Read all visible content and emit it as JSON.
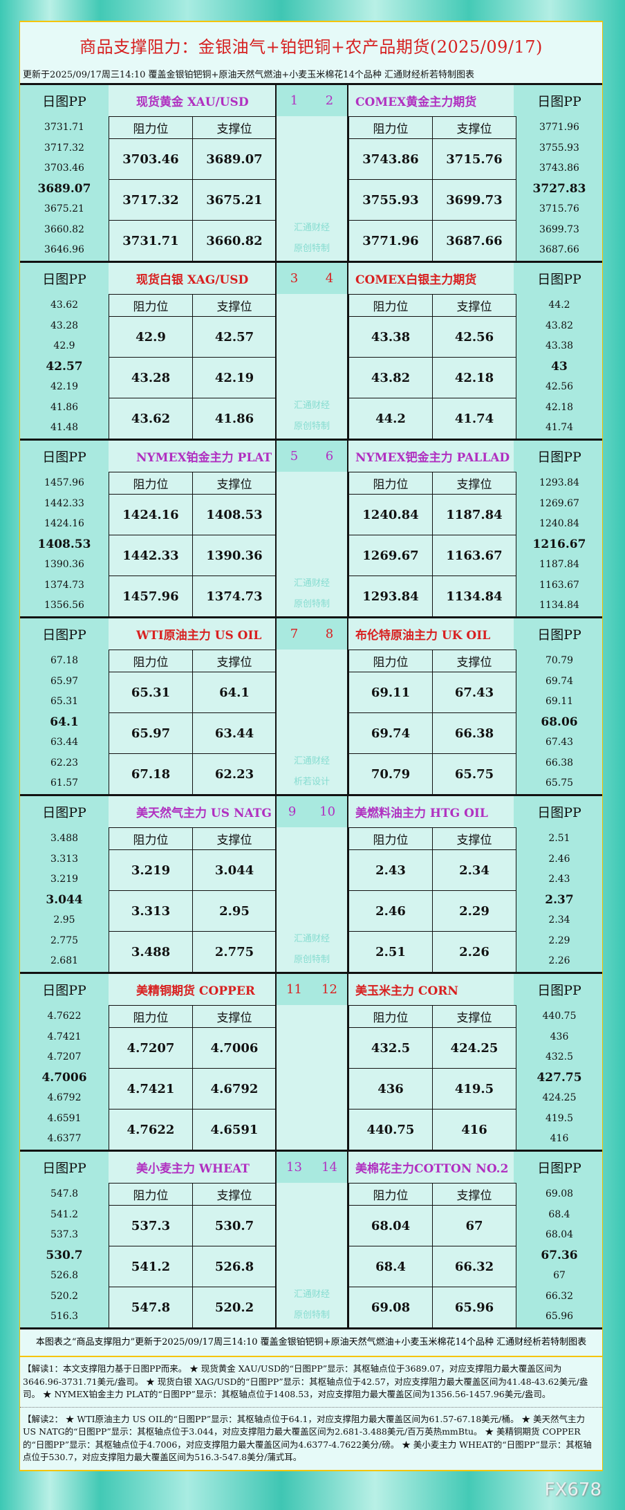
{
  "title": "商品支撑阻力：金银油气+铂钯铜+农产品期货(2025/09/17)",
  "subtitle": "更新于2025/09/17周三14:10  覆盖金银铂钯铜+原油天然气燃油+小麦玉米棉花14个品种  汇通财经析若特制图表",
  "pp_label": "日图PP",
  "res_label": "阻力位",
  "sup_label": "支撑位",
  "colors": {
    "purple": "#b030c0",
    "red": "#d82020"
  },
  "sections": [
    {
      "left": {
        "name": "现货黄金 XAU/USD",
        "color": "purple",
        "num": "1",
        "pp": [
          "3731.71",
          "3717.32",
          "3703.46",
          "3689.07",
          "3675.21",
          "3660.82",
          "3646.96"
        ],
        "rows": [
          [
            "3703.46",
            "3689.07"
          ],
          [
            "3717.32",
            "3675.21"
          ],
          [
            "3731.71",
            "3660.82"
          ]
        ]
      },
      "right": {
        "name": "COMEX黄金主力期货",
        "color": "purple",
        "num": "2",
        "pp": [
          "3771.96",
          "3755.93",
          "3743.86",
          "3727.83",
          "3715.76",
          "3699.73",
          "3687.66"
        ],
        "rows": [
          [
            "3743.86",
            "3715.76"
          ],
          [
            "3755.93",
            "3699.73"
          ],
          [
            "3771.96",
            "3687.66"
          ]
        ]
      },
      "watermark": [
        "汇通财经",
        "原创特制"
      ]
    },
    {
      "left": {
        "name": "现货白银 XAG/USD",
        "color": "red",
        "num": "3",
        "pp": [
          "43.62",
          "43.28",
          "42.9",
          "42.57",
          "42.19",
          "41.86",
          "41.48"
        ],
        "rows": [
          [
            "42.9",
            "42.57"
          ],
          [
            "43.28",
            "42.19"
          ],
          [
            "43.62",
            "41.86"
          ]
        ]
      },
      "right": {
        "name": "COMEX白银主力期货",
        "color": "red",
        "num": "4",
        "pp": [
          "44.2",
          "43.82",
          "43.38",
          "43",
          "42.56",
          "42.18",
          "41.74"
        ],
        "rows": [
          [
            "43.38",
            "42.56"
          ],
          [
            "43.82",
            "42.18"
          ],
          [
            "44.2",
            "41.74"
          ]
        ]
      },
      "watermark": [
        "汇通财经",
        "原创特制"
      ]
    },
    {
      "left": {
        "name": "NYMEX铂金主力 PLAT",
        "color": "purple",
        "num": "5",
        "pp": [
          "1457.96",
          "1442.33",
          "1424.16",
          "1408.53",
          "1390.36",
          "1374.73",
          "1356.56"
        ],
        "rows": [
          [
            "1424.16",
            "1408.53"
          ],
          [
            "1442.33",
            "1390.36"
          ],
          [
            "1457.96",
            "1374.73"
          ]
        ]
      },
      "right": {
        "name": "NYMEX钯金主力 PALLAD",
        "color": "purple",
        "num": "6",
        "pp": [
          "1293.84",
          "1269.67",
          "1240.84",
          "1216.67",
          "1187.84",
          "1163.67",
          "1134.84"
        ],
        "rows": [
          [
            "1240.84",
            "1187.84"
          ],
          [
            "1269.67",
            "1163.67"
          ],
          [
            "1293.84",
            "1134.84"
          ]
        ]
      },
      "watermark": [
        "汇通财经",
        "原创特制"
      ]
    },
    {
      "left": {
        "name": "WTI原油主力 US OIL",
        "color": "red",
        "num": "7",
        "pp": [
          "67.18",
          "65.97",
          "65.31",
          "64.1",
          "63.44",
          "62.23",
          "61.57"
        ],
        "rows": [
          [
            "65.31",
            "64.1"
          ],
          [
            "65.97",
            "63.44"
          ],
          [
            "67.18",
            "62.23"
          ]
        ]
      },
      "right": {
        "name": "布伦特原油主力 UK OIL",
        "color": "red",
        "num": "8",
        "pp": [
          "70.79",
          "69.74",
          "69.11",
          "68.06",
          "67.43",
          "66.38",
          "65.75"
        ],
        "rows": [
          [
            "69.11",
            "67.43"
          ],
          [
            "69.74",
            "66.38"
          ],
          [
            "70.79",
            "65.75"
          ]
        ]
      },
      "watermark": [
        "汇通财经",
        "析若设计"
      ]
    },
    {
      "left": {
        "name": "美天然气主力 US NATG",
        "color": "purple",
        "num": "9",
        "pp": [
          "3.488",
          "3.313",
          "3.219",
          "3.044",
          "2.95",
          "2.775",
          "2.681"
        ],
        "rows": [
          [
            "3.219",
            "3.044"
          ],
          [
            "3.313",
            "2.95"
          ],
          [
            "3.488",
            "2.775"
          ]
        ]
      },
      "right": {
        "name": "美燃料油主力 HTG OIL",
        "color": "purple",
        "num": "10",
        "pp": [
          "2.51",
          "2.46",
          "2.43",
          "2.37",
          "2.34",
          "2.29",
          "2.26"
        ],
        "rows": [
          [
            "2.43",
            "2.34"
          ],
          [
            "2.46",
            "2.29"
          ],
          [
            "2.51",
            "2.26"
          ]
        ]
      },
      "watermark": [
        "汇通财经",
        "原创特制"
      ]
    },
    {
      "left": {
        "name": "美精铜期货 COPPER",
        "color": "red",
        "num": "11",
        "pp": [
          "4.7622",
          "4.7421",
          "4.7207",
          "4.7006",
          "4.6792",
          "4.6591",
          "4.6377"
        ],
        "rows": [
          [
            "4.7207",
            "4.7006"
          ],
          [
            "4.7421",
            "4.6792"
          ],
          [
            "4.7622",
            "4.6591"
          ]
        ]
      },
      "right": {
        "name": "美玉米主力 CORN",
        "color": "red",
        "num": "12",
        "pp": [
          "440.75",
          "436",
          "432.5",
          "427.75",
          "424.25",
          "419.5",
          "416"
        ],
        "rows": [
          [
            "432.5",
            "424.25"
          ],
          [
            "436",
            "419.5"
          ],
          [
            "440.75",
            "416"
          ]
        ]
      },
      "watermark": []
    },
    {
      "left": {
        "name": "美小麦主力 WHEAT",
        "color": "purple",
        "num": "13",
        "pp": [
          "547.8",
          "541.2",
          "537.3",
          "530.7",
          "526.8",
          "520.2",
          "516.3"
        ],
        "rows": [
          [
            "537.3",
            "530.7"
          ],
          [
            "541.2",
            "526.8"
          ],
          [
            "547.8",
            "520.2"
          ]
        ]
      },
      "right": {
        "name": "美棉花主力COTTON NO.2",
        "color": "purple",
        "num": "14",
        "pp": [
          "69.08",
          "68.4",
          "68.04",
          "67.36",
          "67",
          "66.32",
          "65.96"
        ],
        "rows": [
          [
            "68.04",
            "67"
          ],
          [
            "68.4",
            "66.32"
          ],
          [
            "69.08",
            "65.96"
          ]
        ]
      },
      "watermark": [
        "汇通财经",
        "原创特制"
      ]
    }
  ],
  "note": "本图表之“商品支撑阻力”更新于2025/09/17周三14:10  覆盖金银铂钯铜+原油天然气燃油+小麦玉米棉花14个品种  汇通财经析若特制图表",
  "explain1": "【解读1：本文支撑阻力基于日图PP而来。 ★ 现货黄金 XAU/USD的“日图PP”显示：其枢轴点位于3689.07，对应支撑阻力最大覆盖区间为3646.96-3731.71美元/盎司。 ★ 现货白银 XAG/USD的“日图PP”显示：其枢轴点位于42.57，对应支撑阻力最大覆盖区间为41.48-43.62美元/盎司。 ★ NYMEX铂金主力 PLAT的“日图PP”显示：其枢轴点位于1408.53，对应支撑阻力最大覆盖区间为1356.56-1457.96美元/盎司。",
  "explain2": "【解读2： ★ WTI原油主力 US OIL的“日图PP”显示：其枢轴点位于64.1，对应支撑阻力最大覆盖区间为61.57-67.18美元/桶。 ★ 美天然气主力 US NATG的“日图PP”显示：其枢轴点位于3.044，对应支撑阻力最大覆盖区间为2.681-3.488美元/百万英热mmBtu。 ★ 美精铜期货 COPPER的“日图PP”显示：其枢轴点位于4.7006，对应支撑阻力最大覆盖区间为4.6377-4.7622美分/磅。 ★ 美小麦主力 WHEAT的“日图PP”显示：其枢轴点位于530.7，对应支撑阻力最大覆盖区间为516.3-547.8美分/蒲式耳。",
  "logo": "FX678"
}
